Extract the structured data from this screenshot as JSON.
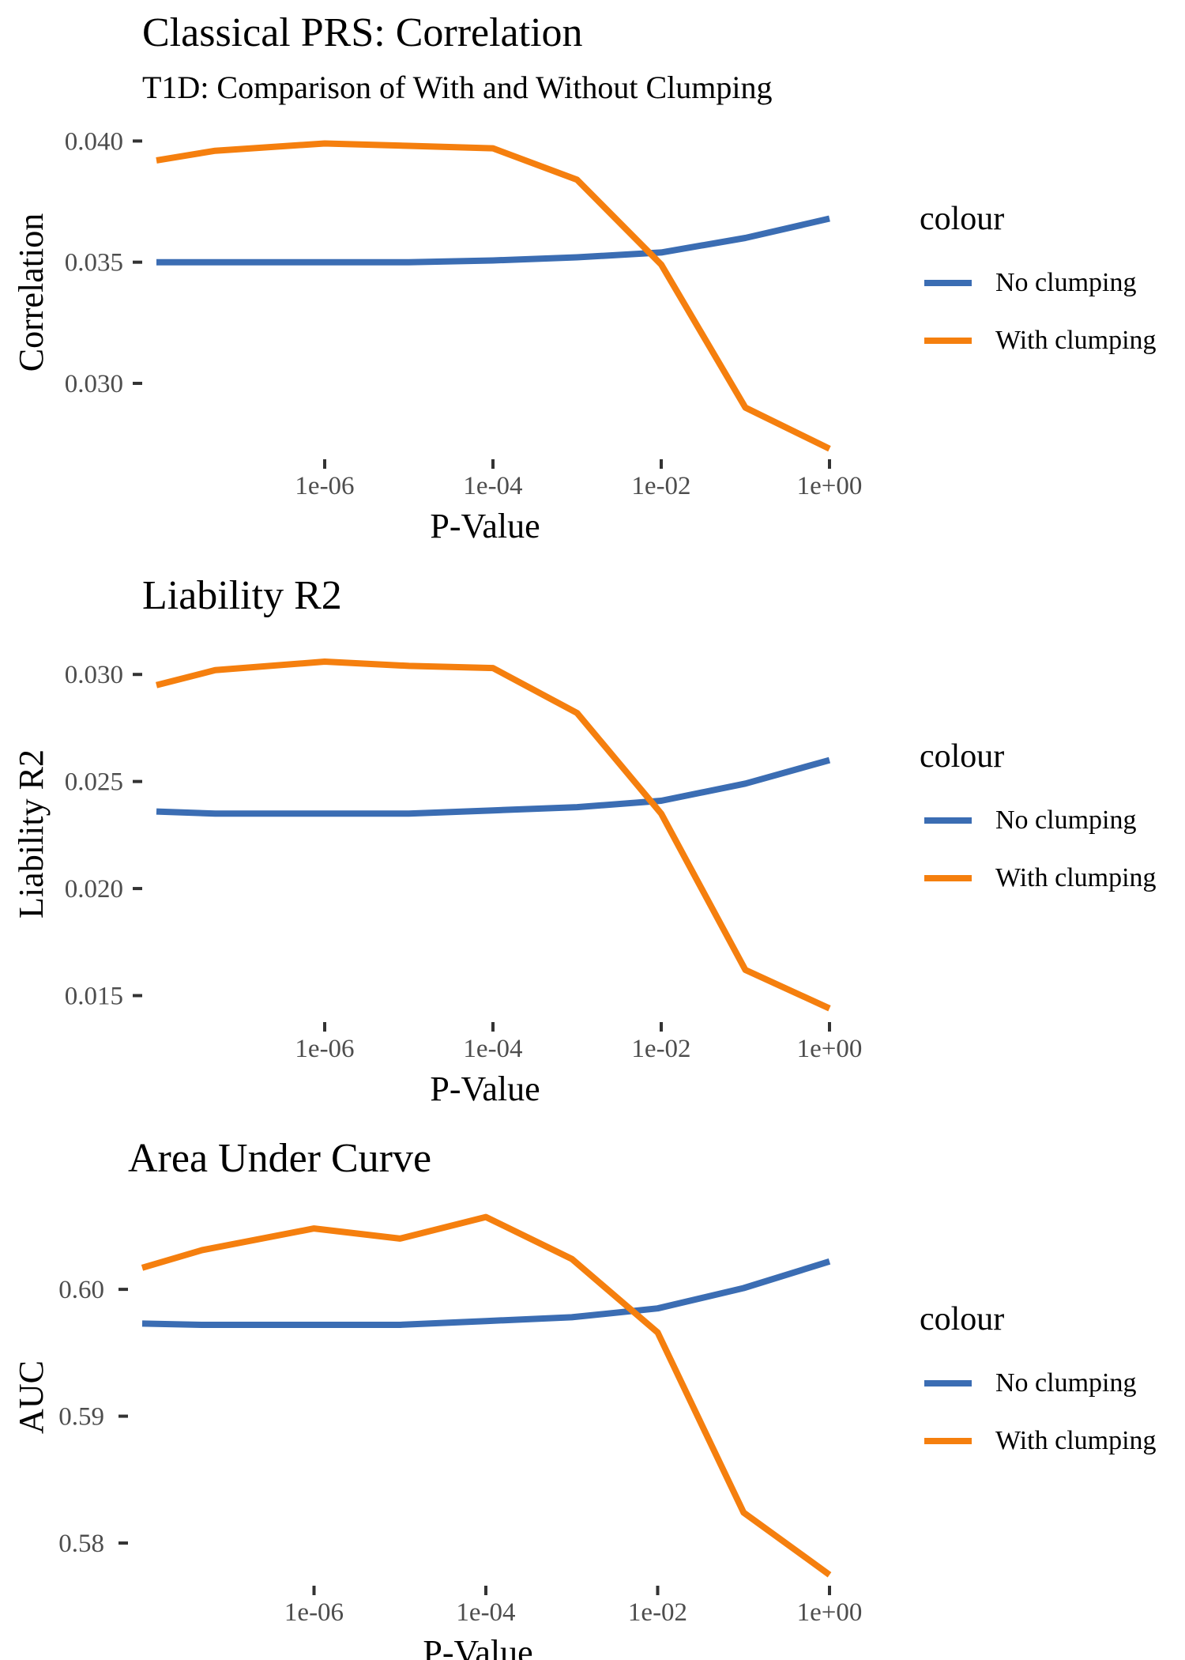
{
  "chart_data": [
    {
      "type": "line",
      "title": "Classical PRS: Correlation",
      "subtitle": "T1D: Comparison of With and Without Clumping",
      "xlabel": "P-Value",
      "ylabel": "Correlation",
      "x_scale": "log10",
      "x_ticks": [
        1e-06,
        0.0001,
        0.01,
        1
      ],
      "x_tick_labels": [
        "1e-06",
        "1e-04",
        "1e-02",
        "1e+00"
      ],
      "y_ticks": [
        0.03,
        0.035,
        0.04
      ],
      "y_tick_labels": [
        "0.030",
        "0.035",
        "0.040"
      ],
      "ylim": [
        0.0269,
        0.0406
      ],
      "x_values": [
        1e-08,
        5e-08,
        1e-06,
        1e-05,
        0.0001,
        0.001,
        0.01,
        0.1,
        1
      ],
      "series": [
        {
          "name": "No clumping",
          "color": "#3b6db3",
          "values": [
            0.035,
            0.035,
            0.035,
            0.035,
            0.03507,
            0.0352,
            0.0354,
            0.036,
            0.0368
          ]
        },
        {
          "name": "With clumping",
          "color": "#f57f0e",
          "values": [
            0.0392,
            0.0396,
            0.0399,
            0.0398,
            0.0397,
            0.0384,
            0.0349,
            0.029,
            0.0273
          ]
        }
      ],
      "grid": false,
      "legend": {
        "title": "colour",
        "position": "right"
      }
    },
    {
      "type": "line",
      "title": "Liability R2",
      "xlabel": "P-Value",
      "ylabel": "Liability R2",
      "x_scale": "log10",
      "x_ticks": [
        1e-06,
        0.0001,
        0.01,
        1
      ],
      "x_tick_labels": [
        "1e-06",
        "1e-04",
        "1e-02",
        "1e+00"
      ],
      "y_ticks": [
        0.015,
        0.02,
        0.025,
        0.03
      ],
      "y_tick_labels": [
        "0.015",
        "0.020",
        "0.025",
        "0.030"
      ],
      "ylim": [
        0.0138,
        0.0313
      ],
      "x_values": [
        1e-08,
        5e-08,
        1e-06,
        1e-05,
        0.0001,
        0.001,
        0.01,
        0.1,
        1
      ],
      "series": [
        {
          "name": "No clumping",
          "color": "#3b6db3",
          "values": [
            0.0236,
            0.0235,
            0.0235,
            0.0235,
            0.02365,
            0.0238,
            0.0241,
            0.0249,
            0.026
          ]
        },
        {
          "name": "With clumping",
          "color": "#f57f0e",
          "values": [
            0.0295,
            0.0302,
            0.0306,
            0.0304,
            0.0303,
            0.0282,
            0.0235,
            0.0162,
            0.0144
          ]
        }
      ],
      "grid": false,
      "legend": {
        "title": "colour",
        "position": "right"
      }
    },
    {
      "type": "line",
      "title": "Area Under Curve",
      "xlabel": "P-Value",
      "ylabel": "AUC",
      "x_scale": "log10",
      "x_ticks": [
        1e-06,
        0.0001,
        0.01,
        1
      ],
      "x_tick_labels": [
        "1e-06",
        "1e-04",
        "1e-02",
        "1e+00"
      ],
      "y_ticks": [
        0.58,
        0.59,
        0.6
      ],
      "y_tick_labels": [
        "0.58",
        "0.59",
        "0.60"
      ],
      "ylim": [
        0.5767,
        0.6063
      ],
      "x_values": [
        1e-08,
        5e-08,
        1e-06,
        1e-05,
        0.0001,
        0.001,
        0.01,
        0.1,
        1
      ],
      "series": [
        {
          "name": "No clumping",
          "color": "#3b6db3",
          "values": [
            0.5973,
            0.5972,
            0.5972,
            0.5972,
            0.5975,
            0.5978,
            0.5985,
            0.6001,
            0.6022
          ]
        },
        {
          "name": "With clumping",
          "color": "#f57f0e",
          "values": [
            0.6017,
            0.6031,
            0.6048,
            0.604,
            0.6057,
            0.6024,
            0.5966,
            0.5824,
            0.5775
          ]
        }
      ],
      "grid": false,
      "legend": {
        "title": "colour",
        "position": "right"
      }
    }
  ]
}
